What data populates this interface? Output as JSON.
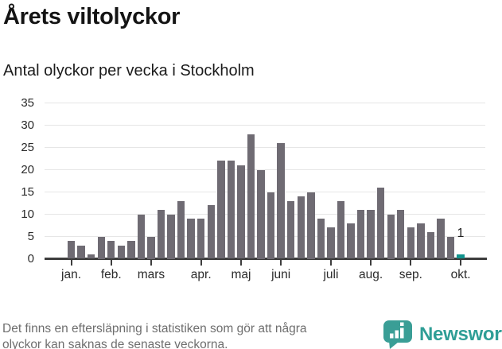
{
  "header": {
    "title": "Årets viltolyckor",
    "subtitle": "Antal olyckor per vecka i Stockholm"
  },
  "footer": {
    "note_line1": "Det finns en eftersläpning i statistiken som gör att några",
    "note_line2": "olyckor kan saknas de senaste veckorna.",
    "brand_name": "Newsworthy"
  },
  "chart_data": {
    "type": "bar",
    "title": "Årets viltolyckor",
    "subtitle": "Antal olyckor per vecka i Stockholm",
    "x_unit": "vecka",
    "weeks": [
      1,
      2,
      3,
      4,
      5,
      6,
      7,
      8,
      9,
      10,
      11,
      12,
      13,
      14,
      15,
      16,
      17,
      18,
      19,
      20,
      21,
      22,
      23,
      24,
      25,
      26,
      27,
      28,
      29,
      30,
      31,
      32,
      33,
      34,
      35,
      36,
      37,
      38,
      39,
      40
    ],
    "values": [
      4,
      3,
      1,
      5,
      4,
      3,
      4,
      10,
      5,
      11,
      10,
      13,
      9,
      9,
      12,
      22,
      22,
      21,
      28,
      20,
      15,
      26,
      13,
      14,
      15,
      9,
      7,
      13,
      8,
      11,
      11,
      16,
      10,
      11,
      7,
      8,
      6,
      9,
      5,
      1
    ],
    "highlight": {
      "week": 40,
      "value": 1,
      "label": "1"
    },
    "ylim": [
      0,
      35
    ],
    "yticks": [
      0,
      5,
      10,
      15,
      20,
      25,
      30,
      35
    ],
    "xticks": [
      {
        "label": "jan.",
        "week": 1
      },
      {
        "label": "feb.",
        "week": 5
      },
      {
        "label": "mars",
        "week": 9
      },
      {
        "label": "apr.",
        "week": 14
      },
      {
        "label": "maj",
        "week": 18
      },
      {
        "label": "juni",
        "week": 22
      },
      {
        "label": "juli",
        "week": 27
      },
      {
        "label": "aug.",
        "week": 31
      },
      {
        "label": "sep.",
        "week": 35
      },
      {
        "label": "okt.",
        "week": 40
      }
    ],
    "grid": true,
    "legend": "none",
    "colors": {
      "bar": "#6f6b73",
      "highlight": "#11948e",
      "axis": "#3d3d3d",
      "gridline": "#e6e6e6",
      "brand_teal": "#3a9e96"
    }
  }
}
